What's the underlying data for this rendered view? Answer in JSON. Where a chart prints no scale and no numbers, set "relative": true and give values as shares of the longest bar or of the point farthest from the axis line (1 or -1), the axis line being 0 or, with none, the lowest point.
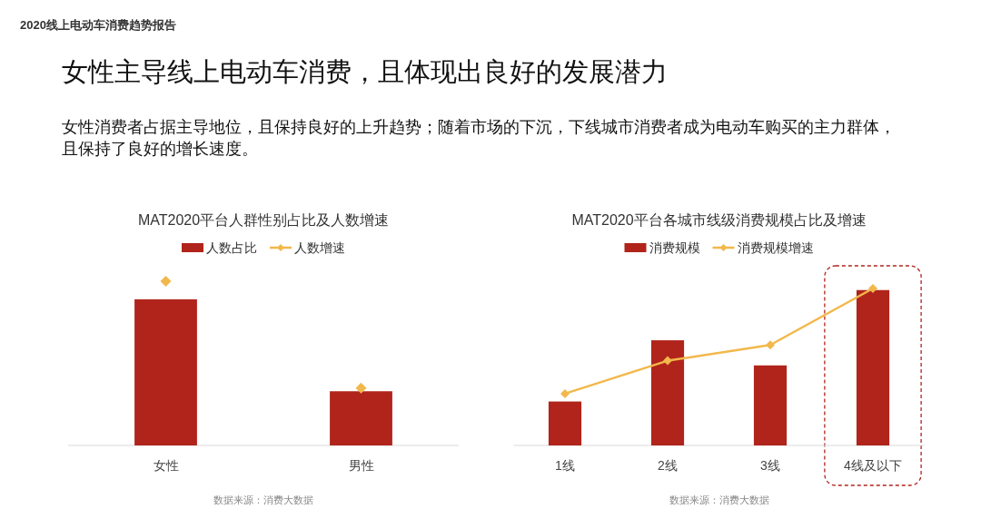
{
  "chart_data": [
    {
      "type": "bar",
      "title": "MAT2020平台人群性别占比及人数增速",
      "categories": [
        "女性",
        "男性"
      ],
      "relative": true,
      "legend": "top",
      "series": [
        {
          "name": "人数占比",
          "color": "#b0241b",
          "values": [
            0.89,
            0.33
          ]
        },
        {
          "name": "人数增速",
          "type": "scatter",
          "marker": "diamond",
          "color": "#f2b84b",
          "values": [
            1,
            0.35
          ]
        }
      ],
      "annotations": [
        "2020线上电动车消费趋势报告",
        "女性主导线上电动车消费，且体现出良好的发展潜力",
        "女性消费者占据主导地位，且保持良好的上升趋势；随着市场的下沉，下线城市消费者成为电动车购买的主力群体，且保持了良好的增长速度。",
        "数据来源：消费大数据"
      ]
    },
    {
      "type": "bar",
      "title": "MAT2020平台各城市线级消费规模占比及增速",
      "categories": [
        "1线",
        "2线",
        "3线",
        "4线及以下"
      ],
      "relative": true,
      "legend": "top",
      "series": [
        {
          "name": "消费规模",
          "color": "#b0241b",
          "values": [
            0.28,
            0.67,
            0.51,
            0.99
          ]
        },
        {
          "name": "消费规模增速",
          "type": "line",
          "marker": "diamond",
          "color": "#f2b84b",
          "values": [
            0.33,
            0.54,
            0.64,
            1
          ]
        }
      ],
      "annotations": [
        "数据来源：消费大数据"
      ]
    }
  ]
}
